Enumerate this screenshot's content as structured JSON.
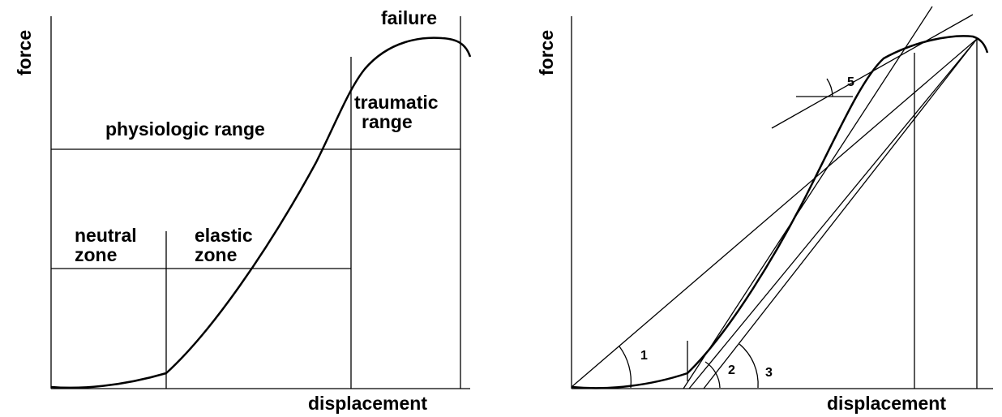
{
  "panels": [
    {
      "y_label": "force",
      "x_label": "displacement",
      "labels": {
        "failure": "failure",
        "traumatic_range": [
          "traumatic",
          "range"
        ],
        "physiologic_range": "physiologic range",
        "neutral_zone": [
          "neutral",
          "zone"
        ],
        "elastic_zone": [
          "elastic",
          "zone"
        ]
      }
    },
    {
      "y_label": "force",
      "x_label": "displacement",
      "angles": [
        "1",
        "2",
        "3",
        "5"
      ]
    }
  ]
}
